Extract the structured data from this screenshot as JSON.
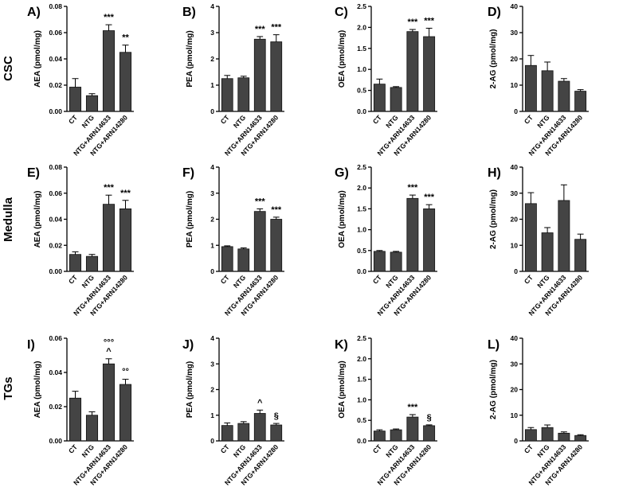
{
  "rows": [
    {
      "label": "CSC"
    },
    {
      "label": "Medulla"
    },
    {
      "label": "TGs"
    }
  ],
  "colors": {
    "bar": "#444444",
    "axis": "#000000"
  },
  "chart_data": [
    {
      "panel": "A)",
      "type": "bar",
      "row": 0,
      "col": 0,
      "ylabel": "AEA (pmol/mg)",
      "yticks": [
        "0.00",
        "0.02",
        "0.04",
        "0.06",
        "0.08"
      ],
      "ylim": [
        0,
        0.08
      ],
      "categories": [
        "CT",
        "NTG",
        "NTG+ARN14633",
        "NTG+ARN14280"
      ],
      "values": [
        0.0185,
        0.012,
        0.0615,
        0.045
      ],
      "errors": [
        0.0065,
        0.0015,
        0.0045,
        0.0055
      ],
      "annotations": [
        "",
        "",
        "***",
        "**"
      ]
    },
    {
      "panel": "B)",
      "type": "bar",
      "row": 0,
      "col": 1,
      "ylabel": "PEA (pmol/mg)",
      "yticks": [
        "0",
        "1",
        "2",
        "3",
        "4"
      ],
      "ylim": [
        0,
        4
      ],
      "categories": [
        "CT",
        "NTG",
        "NTG+ARN14633",
        "NTG+ARN14280"
      ],
      "values": [
        1.25,
        1.28,
        2.75,
        2.65
      ],
      "errors": [
        0.12,
        0.06,
        0.1,
        0.27
      ],
      "annotations": [
        "",
        "",
        "***",
        "***"
      ]
    },
    {
      "panel": "C)",
      "type": "bar",
      "row": 0,
      "col": 2,
      "ylabel": "OEA (pmol/mg)",
      "yticks": [
        "0.0",
        "0.5",
        "1.0",
        "1.5",
        "2.0",
        "2.5"
      ],
      "ylim": [
        0,
        2.5
      ],
      "categories": [
        "CT",
        "NTG",
        "NTG+ARN14633",
        "NTG+ARN14280"
      ],
      "values": [
        0.65,
        0.57,
        1.9,
        1.78
      ],
      "errors": [
        0.12,
        0.02,
        0.05,
        0.2
      ],
      "annotations": [
        "",
        "",
        "***",
        "***"
      ]
    },
    {
      "panel": "D)",
      "type": "bar",
      "row": 0,
      "col": 3,
      "ylabel": "2-AG (pmol/mg)",
      "yticks": [
        "0",
        "10",
        "20",
        "30",
        "40"
      ],
      "ylim": [
        0,
        40
      ],
      "categories": [
        "CT",
        "NTG",
        "NTG+ARN14633",
        "NTG+ARN14280"
      ],
      "values": [
        17.5,
        15.5,
        11.5,
        7.7
      ],
      "errors": [
        3.8,
        3.3,
        1.0,
        0.6
      ],
      "annotations": [
        "",
        "",
        "",
        ""
      ]
    },
    {
      "panel": "E)",
      "type": "bar",
      "row": 1,
      "col": 0,
      "ylabel": "AEA (pmol/mg)",
      "yticks": [
        "0.00",
        "0.02",
        "0.04",
        "0.06",
        "0.08"
      ],
      "ylim": [
        0,
        0.08
      ],
      "categories": [
        "CT",
        "NTG",
        "NTG+ARN14633",
        "NTG+ARN14280"
      ],
      "values": [
        0.013,
        0.0115,
        0.0515,
        0.048
      ],
      "errors": [
        0.002,
        0.0015,
        0.007,
        0.0065
      ],
      "annotations": [
        "",
        "",
        "***",
        "***"
      ]
    },
    {
      "panel": "F)",
      "type": "bar",
      "row": 1,
      "col": 1,
      "ylabel": "PEA (pmol/mg)",
      "yticks": [
        "0",
        "1",
        "2",
        "3",
        "4"
      ],
      "ylim": [
        0,
        4
      ],
      "categories": [
        "CT",
        "NTG",
        "NTG+ARN14633",
        "NTG+ARN14280"
      ],
      "values": [
        0.95,
        0.86,
        2.3,
        2.0
      ],
      "errors": [
        0.03,
        0.04,
        0.1,
        0.08
      ],
      "annotations": [
        "",
        "",
        "***",
        "***"
      ]
    },
    {
      "panel": "G)",
      "type": "bar",
      "row": 1,
      "col": 2,
      "ylabel": "OEA (pmol/mg)",
      "yticks": [
        "0.0",
        "0.5",
        "1.0",
        "1.5",
        "2.0",
        "2.5"
      ],
      "ylim": [
        0,
        2.5
      ],
      "categories": [
        "CT",
        "NTG",
        "NTG+ARN14633",
        "NTG+ARN14280"
      ],
      "values": [
        0.48,
        0.46,
        1.75,
        1.5
      ],
      "errors": [
        0.02,
        0.02,
        0.08,
        0.1
      ],
      "annotations": [
        "",
        "",
        "***",
        "***"
      ]
    },
    {
      "panel": "H)",
      "type": "bar",
      "row": 1,
      "col": 3,
      "ylabel": "2-AG (pmol/mg)",
      "yticks": [
        "0",
        "10",
        "20",
        "30",
        "40"
      ],
      "ylim": [
        0,
        40
      ],
      "categories": [
        "CT",
        "NTG",
        "NTG+ARN14633",
        "NTG+ARN14280"
      ],
      "values": [
        26,
        14.8,
        27.2,
        12.3
      ],
      "errors": [
        4.2,
        2.0,
        6.0,
        2.0
      ],
      "annotations": [
        "",
        "",
        "",
        ""
      ]
    },
    {
      "panel": "I)",
      "type": "bar",
      "row": 2,
      "col": 0,
      "ylabel": "AEA (pmol/mg)",
      "yticks": [
        "0.00",
        "0.02",
        "0.04",
        "0.06"
      ],
      "ylim": [
        0,
        0.06
      ],
      "categories": [
        "CT",
        "NTG",
        "NTG+ARN14633",
        "NTG+ARN14280"
      ],
      "values": [
        0.025,
        0.015,
        0.045,
        0.033
      ],
      "errors": [
        0.004,
        0.002,
        0.003,
        0.003
      ],
      "annotations": [
        "",
        "",
        "°°°\n^",
        "°°"
      ]
    },
    {
      "panel": "J)",
      "type": "bar",
      "row": 2,
      "col": 1,
      "ylabel": "PEA (pmol/mg)",
      "yticks": [
        "0",
        "1",
        "2",
        "3",
        "4"
      ],
      "ylim": [
        0,
        4
      ],
      "categories": [
        "CT",
        "NTG",
        "NTG+ARN14633",
        "NTG+ARN14280"
      ],
      "values": [
        0.6,
        0.68,
        1.07,
        0.62
      ],
      "errors": [
        0.1,
        0.07,
        0.13,
        0.06
      ],
      "annotations": [
        "",
        "",
        "^",
        "§"
      ]
    },
    {
      "panel": "K)",
      "type": "bar",
      "row": 2,
      "col": 2,
      "ylabel": "OEA (pmol/mg)",
      "yticks": [
        "0.0",
        "0.5",
        "1.0",
        "1.5",
        "2.0",
        "2.5"
      ],
      "ylim": [
        0,
        2.5
      ],
      "categories": [
        "CT",
        "NTG",
        "NTG+ARN14633",
        "NTG+ARN14280"
      ],
      "values": [
        0.24,
        0.27,
        0.58,
        0.37
      ],
      "errors": [
        0.03,
        0.02,
        0.06,
        0.02
      ],
      "annotations": [
        "",
        "",
        "***",
        "§"
      ]
    },
    {
      "panel": "L)",
      "type": "bar",
      "row": 2,
      "col": 3,
      "ylabel": "2-AG (pmol/mg)",
      "yticks": [
        "0",
        "10",
        "20",
        "30",
        "40"
      ],
      "ylim": [
        0,
        40
      ],
      "categories": [
        "CT",
        "NTG",
        "NTG+ARN14633",
        "NTG+ARN14280"
      ],
      "values": [
        4.4,
        5.2,
        3.0,
        2.1
      ],
      "errors": [
        0.8,
        1.0,
        0.5,
        0.3
      ],
      "annotations": [
        "",
        "",
        "",
        ""
      ]
    }
  ]
}
